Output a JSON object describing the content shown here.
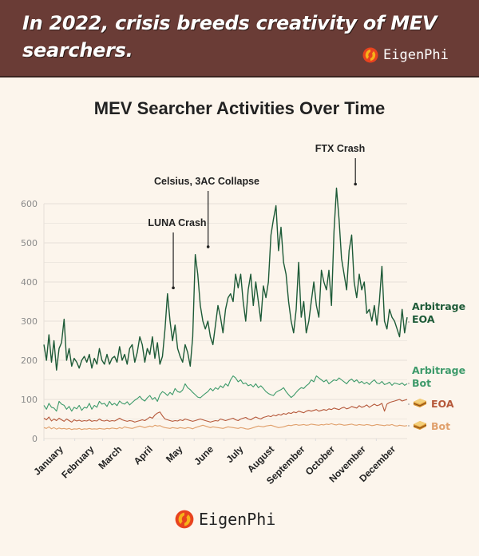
{
  "banner": {
    "title": "In 2022, crisis breeds creativity of MEV searchers.",
    "logo_text": "EigenPhi"
  },
  "footer": {
    "logo_text": "EigenPhi"
  },
  "colors": {
    "banner_bg": "#6a3c36",
    "page_bg": "#fcf5ec",
    "arbitrage_eoa": "#1d5a37",
    "arbitrage_bot": "#3d9a6a",
    "sandwich_eoa": "#b5583a",
    "sandwich_bot": "#e0a06c",
    "logo_red": "#e8431f",
    "logo_yellow": "#f6b21a"
  },
  "chart_data": {
    "type": "line",
    "title": "MEV Searcher Activities Over Time",
    "xlabel": "",
    "ylabel": "",
    "ylim": [
      0,
      650
    ],
    "yticks": [
      0,
      100,
      200,
      300,
      400,
      500,
      600
    ],
    "grid": true,
    "x_tick_labels": [
      "January",
      "February",
      "March",
      "April",
      "May",
      "June",
      "July",
      "August",
      "September",
      "October",
      "November",
      "December"
    ],
    "x_domain_days": [
      0,
      365
    ],
    "sample_interval_days": 5,
    "legend_placement": "right-end-labels",
    "series": [
      {
        "name": "Arbitrage EOA",
        "label_lines": [
          "Arbitrage",
          "EOA"
        ],
        "icon": "",
        "color_key": "arbitrage_eoa",
        "values": [
          240,
          200,
          265,
          195,
          250,
          175,
          230,
          245,
          305,
          200,
          230,
          185,
          205,
          195,
          180,
          200,
          210,
          195,
          215,
          180,
          205,
          190,
          230,
          200,
          190,
          215,
          190,
          205,
          210,
          195,
          235,
          200,
          215,
          190,
          230,
          240,
          195,
          220,
          260,
          240,
          195,
          230,
          215,
          260,
          205,
          245,
          190,
          210,
          280,
          370,
          300,
          250,
          290,
          230,
          210,
          195,
          240,
          220,
          185,
          260,
          470,
          420,
          340,
          300,
          280,
          300,
          260,
          240,
          290,
          340,
          310,
          270,
          330,
          360,
          370,
          350,
          420,
          385,
          420,
          350,
          300,
          380,
          420,
          340,
          400,
          350,
          300,
          390,
          360,
          400,
          520,
          560,
          595,
          480,
          540,
          450,
          420,
          350,
          300,
          270,
          330,
          450,
          310,
          350,
          270,
          300,
          350,
          400,
          340,
          310,
          430,
          400,
          380,
          430,
          340,
          530,
          640,
          560,
          460,
          420,
          380,
          480,
          520,
          400,
          360,
          420,
          380,
          400,
          320,
          330,
          300,
          340,
          290,
          350,
          440,
          300,
          280,
          330,
          310,
          300,
          280,
          260,
          330,
          270,
          310
        ]
      },
      {
        "name": "Arbitrage Bot",
        "label_lines": [
          "Arbitrage",
          "Bot"
        ],
        "icon": "",
        "color_key": "arbitrage_bot",
        "values": [
          85,
          75,
          90,
          80,
          78,
          70,
          95,
          88,
          85,
          75,
          82,
          70,
          80,
          76,
          85,
          72,
          80,
          78,
          90,
          75,
          85,
          80,
          95,
          88,
          90,
          82,
          95,
          86,
          90,
          84,
          96,
          90,
          88,
          94,
          86,
          92,
          98,
          102,
          108,
          100,
          96,
          104,
          110,
          100,
          105,
          95,
          112,
          120,
          116,
          110,
          118,
          112,
          128,
          120,
          118,
          124,
          140,
          130,
          125,
          118,
          112,
          106,
          104,
          110,
          115,
          120,
          128,
          122,
          130,
          126,
          135,
          130,
          140,
          134,
          150,
          160,
          155,
          145,
          150,
          140,
          142,
          135,
          138,
          132,
          140,
          130,
          135,
          128,
          120,
          115,
          112,
          110,
          118,
          122,
          125,
          130,
          120,
          112,
          105,
          110,
          118,
          125,
          130,
          128,
          135,
          140,
          150,
          145,
          160,
          155,
          150,
          145,
          150,
          140,
          145,
          150,
          148,
          155,
          150,
          145,
          140,
          148,
          152,
          145,
          150,
          142,
          146,
          140,
          144,
          138,
          145,
          150,
          142,
          140,
          146,
          138,
          140,
          144,
          136,
          142,
          140,
          138,
          142,
          136,
          140
        ]
      },
      {
        "name": "Sandwich EOA",
        "label_lines": [
          "EOA"
        ],
        "icon": "sandwich-icon",
        "color_key": "sandwich_eoa",
        "values": [
          52,
          48,
          55,
          45,
          50,
          46,
          52,
          48,
          44,
          50,
          46,
          42,
          48,
          45,
          47,
          44,
          46,
          45,
          48,
          44,
          46,
          45,
          50,
          46,
          45,
          47,
          44,
          46,
          45,
          48,
          52,
          48,
          46,
          44,
          46,
          45,
          42,
          44,
          46,
          48,
          46,
          50,
          55,
          52,
          60,
          65,
          68,
          58,
          50,
          48,
          46,
          44,
          46,
          45,
          48,
          46,
          50,
          48,
          46,
          44,
          46,
          48,
          50,
          48,
          46,
          44,
          42,
          44,
          46,
          45,
          50,
          48,
          46,
          48,
          50,
          52,
          48,
          46,
          50,
          52,
          54,
          50,
          48,
          52,
          55,
          52,
          50,
          54,
          56,
          58,
          56,
          60,
          58,
          62,
          60,
          64,
          62,
          66,
          64,
          68,
          66,
          70,
          68,
          66,
          70,
          72,
          70,
          72,
          74,
          70,
          72,
          74,
          72,
          76,
          74,
          78,
          76,
          74,
          78,
          80,
          76,
          78,
          82,
          80,
          78,
          84,
          80,
          82,
          86,
          80,
          84,
          88,
          84,
          86,
          90,
          70,
          88,
          92,
          94,
          96,
          98,
          100,
          96,
          98,
          100
        ]
      },
      {
        "name": "Sandwich Bot",
        "label_lines": [
          "Bot"
        ],
        "icon": "sandwich-icon",
        "color_key": "sandwich_bot",
        "values": [
          28,
          26,
          30,
          25,
          28,
          24,
          27,
          25,
          26,
          24,
          26,
          23,
          25,
          24,
          26,
          23,
          25,
          24,
          26,
          24,
          25,
          24,
          26,
          25,
          24,
          26,
          25,
          27,
          26,
          25,
          28,
          26,
          30,
          28,
          27,
          26,
          28,
          30,
          32,
          30,
          28,
          30,
          32,
          30,
          34,
          32,
          33,
          30,
          28,
          27,
          26,
          28,
          27,
          26,
          28,
          27,
          26,
          28,
          27,
          25,
          28,
          30,
          32,
          34,
          32,
          30,
          28,
          30,
          29,
          28,
          27,
          26,
          28,
          30,
          29,
          28,
          27,
          26,
          28,
          27,
          25,
          24,
          26,
          28,
          30,
          32,
          31,
          30,
          32,
          33,
          34,
          32,
          30,
          28,
          29,
          30,
          32,
          34,
          33,
          35,
          36,
          34,
          35,
          36,
          34,
          35,
          37,
          36,
          35,
          34,
          36,
          35,
          37,
          36,
          38,
          36,
          35,
          37,
          36,
          34,
          35,
          36,
          37,
          35,
          34,
          36,
          35,
          34,
          36,
          35,
          33,
          34,
          36,
          35,
          34,
          33,
          35,
          34,
          36,
          33,
          32,
          34,
          33,
          32,
          33
        ]
      }
    ],
    "annotations": [
      {
        "text": "LUNA Crash",
        "day": 130,
        "value": 395
      },
      {
        "text": "Celsius, 3AC Collapse",
        "day": 165,
        "value": 500
      },
      {
        "text": "FTX Crash",
        "day": 313,
        "value": 660
      }
    ]
  }
}
